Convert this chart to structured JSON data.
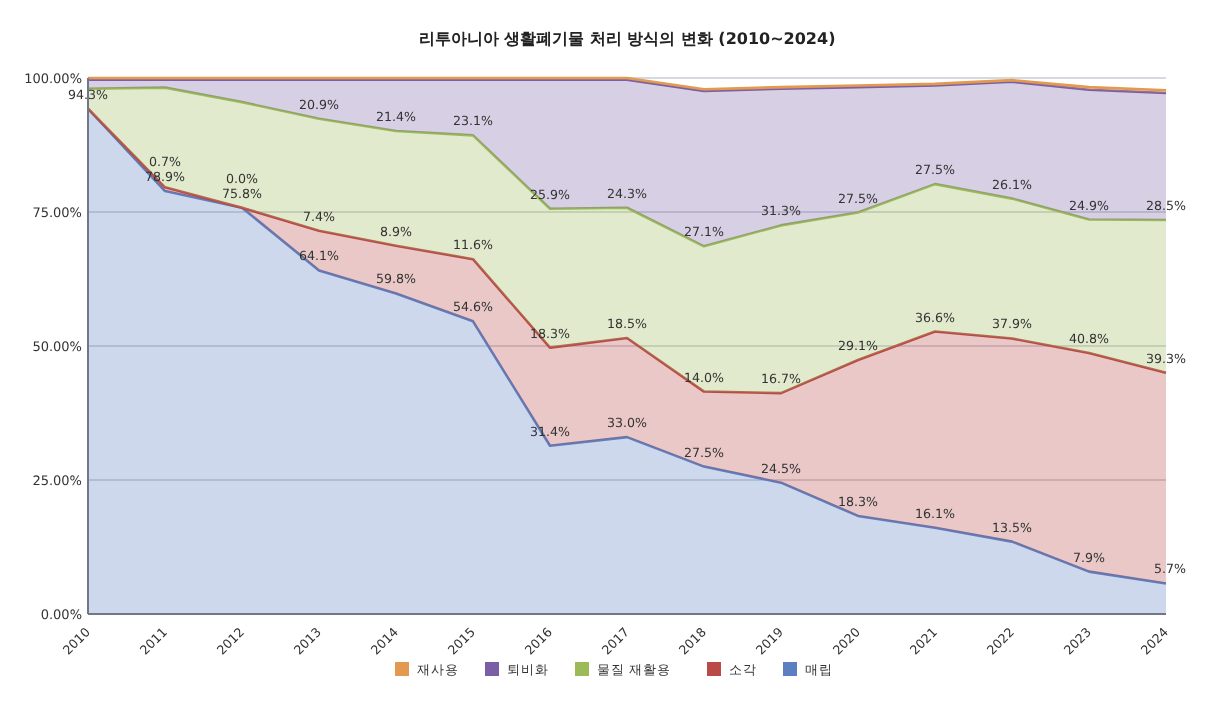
{
  "chart_data": {
    "type": "area",
    "stacked": true,
    "title": "리투아니아 생활폐기물 처리 방식의 변화 (2010~2024)",
    "categories": [
      "2010",
      "2011",
      "2012",
      "2013",
      "2014",
      "2015",
      "2016",
      "2017",
      "2018",
      "2019",
      "2020",
      "2021",
      "2022",
      "2023",
      "2024"
    ],
    "ylim": [
      0,
      100
    ],
    "yticks": [
      {
        "value": 0,
        "label": "0.00%"
      },
      {
        "value": 25,
        "label": "25.00%"
      },
      {
        "value": 50,
        "label": "50.00%"
      },
      {
        "value": 75,
        "label": "75.00%"
      },
      {
        "value": 100,
        "label": "100.00%"
      }
    ],
    "grid": "y",
    "legend": "bottom",
    "series": [
      {
        "name": "매립",
        "color": "#5b7fc0",
        "values": [
          94.3,
          78.9,
          75.8,
          64.1,
          59.8,
          54.6,
          31.4,
          33.0,
          27.5,
          24.5,
          18.3,
          16.1,
          13.5,
          7.9,
          5.7
        ],
        "value_labels": [
          "94.3%",
          "78.9%",
          "75.8%",
          "64.1%",
          "59.8%",
          "54.6%",
          "31.4%",
          "33.0%",
          "27.5%",
          "24.5%",
          "18.3%",
          "16.1%",
          "13.5%",
          "7.9%",
          "5.7%"
        ]
      },
      {
        "name": "소각",
        "color": "#b94a48",
        "values": [
          0,
          0.7,
          0.0,
          7.4,
          8.9,
          11.6,
          18.3,
          18.5,
          14.0,
          16.7,
          29.1,
          36.6,
          37.9,
          40.8,
          39.3
        ],
        "value_labels": [
          null,
          "0.7%",
          "0.0%",
          "7.4%",
          "8.9%",
          "11.6%",
          "18.3%",
          "18.5%",
          "14.0%",
          "16.7%",
          "29.1%",
          "36.6%",
          "37.9%",
          "40.8%",
          "39.3%"
        ]
      },
      {
        "name": "물질 재활용",
        "color": "#9bbb59",
        "values": [
          3.7,
          18.6,
          19.7,
          20.9,
          21.4,
          23.1,
          25.9,
          24.3,
          27.1,
          31.3,
          27.5,
          27.5,
          26.1,
          24.9,
          28.5
        ],
        "value_labels": [
          null,
          null,
          null,
          "20.9%",
          "21.4%",
          "23.1%",
          "25.9%",
          "24.3%",
          "27.1%",
          "31.3%",
          "27.5%",
          "27.5%",
          "26.1%",
          "24.9%",
          "28.5%"
        ]
      },
      {
        "name": "퇴비화",
        "color": "#7a5fa6",
        "values": [
          1.7,
          1.5,
          4.2,
          7.3,
          9.6,
          10.4,
          24.1,
          23.9,
          29.0,
          25.5,
          23.4,
          18.4,
          21.8,
          24.2,
          23.7
        ]
      },
      {
        "name": "재사용",
        "color": "#e39a50",
        "values": [
          0.3,
          0.3,
          0.3,
          0.3,
          0.3,
          0.3,
          0.3,
          0.3,
          0.3,
          0.3,
          0.3,
          0.3,
          0.3,
          0.5,
          0.5
        ]
      }
    ]
  }
}
